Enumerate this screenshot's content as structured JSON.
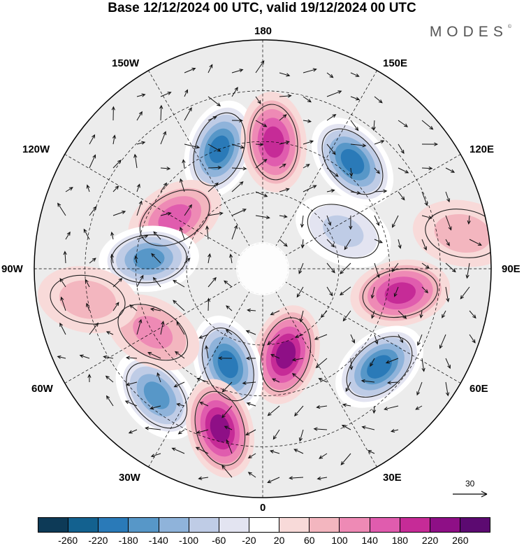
{
  "title": "Base 12/12/2024 00 UTC, valid 19/12/2024 00 UTC",
  "brand": "MODES",
  "brand_mark": "©",
  "longitude_labels": {
    "top": "180",
    "bottom": "0",
    "left": "90W",
    "right": "90E",
    "upper_left_1": "150W",
    "upper_left_2": "120W",
    "upper_right_1": "150E",
    "upper_right_2": "120E",
    "lower_left_1": "60W",
    "lower_left_2": "30W",
    "lower_right_1": "60E",
    "lower_right_2": "30E"
  },
  "reference_vector": {
    "value": "30"
  },
  "colorbar": {
    "colors": [
      "#0d3a57",
      "#13618f",
      "#2a7ab8",
      "#5797c8",
      "#8fb3da",
      "#bfcce6",
      "#e3e4f1",
      "#ffffff",
      "#f8dad9",
      "#f3b6bf",
      "#ee8ab5",
      "#e05cae",
      "#c62b97",
      "#8e0f86",
      "#5c0a71"
    ],
    "labels": [
      "-260",
      "-220",
      "-180",
      "-140",
      "-100",
      "-60",
      "-20",
      "20",
      "60",
      "100",
      "140",
      "180",
      "220",
      "260"
    ]
  },
  "anomaly_cells": [
    {
      "lon": -160,
      "lat": 40,
      "value": -230
    },
    {
      "lon": 175,
      "lat": 40,
      "value": 200
    },
    {
      "lon": 140,
      "lat": 35,
      "value": -220
    },
    {
      "lon": -120,
      "lat": 50,
      "value": 150
    },
    {
      "lon": -95,
      "lat": 45,
      "value": -190
    },
    {
      "lon": 115,
      "lat": 55,
      "value": -110
    },
    {
      "lon": 80,
      "lat": 35,
      "value": 200
    },
    {
      "lon": 50,
      "lat": 30,
      "value": -250
    },
    {
      "lon": 15,
      "lat": 55,
      "value": 240
    },
    {
      "lon": -20,
      "lat": 50,
      "value": -220
    },
    {
      "lon": -40,
      "lat": 25,
      "value": -200
    },
    {
      "lon": -15,
      "lat": 25,
      "value": 230
    },
    {
      "lon": -60,
      "lat": 40,
      "value": 110
    },
    {
      "lon": 100,
      "lat": 10,
      "value": 80
    },
    {
      "lon": -80,
      "lat": 20,
      "value": 60
    }
  ],
  "icons": {
    "north_pole": "north-pole-marker",
    "reference_arrow": "arrow-right-icon"
  }
}
